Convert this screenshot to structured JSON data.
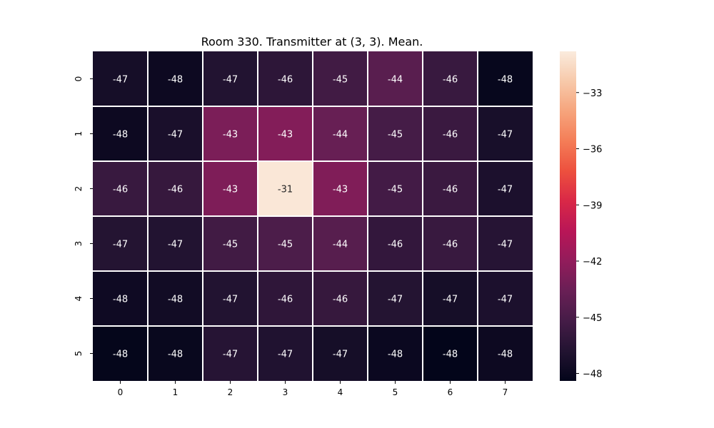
{
  "chart_data": {
    "type": "heatmap",
    "title": "Room 330. Transmitter at (3, 3). Mean.",
    "x_categories": [
      "0",
      "1",
      "2",
      "3",
      "4",
      "5",
      "6",
      "7"
    ],
    "y_categories": [
      "0",
      "1",
      "2",
      "3",
      "4",
      "5"
    ],
    "values": [
      [
        -47.4,
        -47.9,
        -46.8,
        -46.3,
        -45.4,
        -44.3,
        -45.8,
        -48.2
      ],
      [
        -47.9,
        -47.2,
        -42.9,
        -42.6,
        -43.7,
        -45.2,
        -45.7,
        -47.3
      ],
      [
        -45.8,
        -45.9,
        -42.8,
        -31.0,
        -42.7,
        -45.3,
        -45.7,
        -47.1
      ],
      [
        -46.7,
        -46.8,
        -45.4,
        -44.9,
        -44.4,
        -46.0,
        -45.8,
        -46.6
      ],
      [
        -47.8,
        -47.6,
        -46.8,
        -46.2,
        -45.9,
        -46.7,
        -47.4,
        -47.1
      ],
      [
        -48.3,
        -48.1,
        -46.6,
        -46.9,
        -47.4,
        -48.0,
        -48.4,
        -47.9
      ]
    ],
    "cell_labels": [
      [
        "-47",
        "-48",
        "-47",
        "-46",
        "-45",
        "-44",
        "-46",
        "-48"
      ],
      [
        "-48",
        "-47",
        "-43",
        "-43",
        "-44",
        "-45",
        "-46",
        "-47"
      ],
      [
        "-46",
        "-46",
        "-43",
        "-31",
        "-43",
        "-45",
        "-46",
        "-47"
      ],
      [
        "-47",
        "-47",
        "-45",
        "-45",
        "-44",
        "-46",
        "-46",
        "-47"
      ],
      [
        "-48",
        "-48",
        "-47",
        "-46",
        "-46",
        "-47",
        "-47",
        "-47"
      ],
      [
        "-48",
        "-48",
        "-47",
        "-47",
        "-47",
        "-48",
        "-48",
        "-48"
      ]
    ],
    "colorbar": {
      "min": -48.4,
      "max": -30.8,
      "ticks": [
        -48,
        -45,
        -42,
        -39,
        -36,
        -33
      ],
      "tick_labels": [
        "−48",
        "−45",
        "−42",
        "−39",
        "−36",
        "−33"
      ]
    },
    "colormap": "rocket",
    "colormap_stops": [
      "#03051a",
      "#221331",
      "#451c47",
      "#691f55",
      "#921c5b",
      "#b91657",
      "#d92847",
      "#ed503e",
      "#f47d57",
      "#f6a47c",
      "#f7c9aa",
      "#faebdd"
    ],
    "grid_line_color": "#ffffff",
    "label_color_dark_bg": "#ffffff",
    "label_color_light_bg": "#262626"
  }
}
